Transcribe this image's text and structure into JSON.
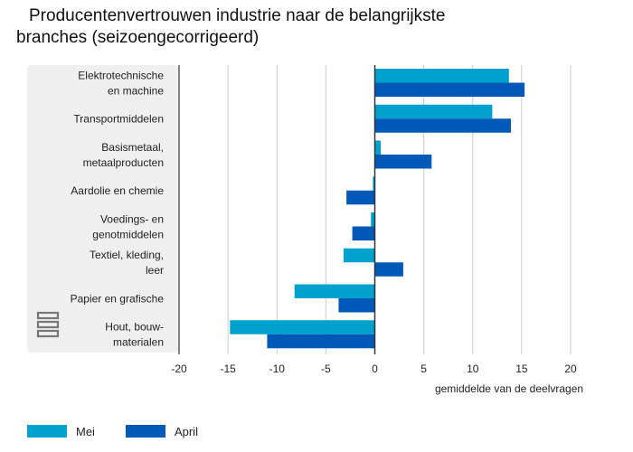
{
  "title_line1": "Producentenvertrouwen industrie naar de belangrijkste",
  "title_line2": "branches (seizoengecorrigeerd)",
  "logo_icon": "cbs-logo-icon",
  "colors": {
    "mei": "#00a1cd",
    "april": "#0058b8",
    "panel": "#efefef",
    "grid": "#cccccc",
    "zero": "#333333"
  },
  "chart_data": {
    "type": "bar",
    "orientation": "horizontal",
    "categories": [
      [
        "Elektrotechnische",
        "en machine"
      ],
      [
        "Transportmiddelen"
      ],
      [
        "Basismetaal,",
        "metaalproducten"
      ],
      [
        "Aardolie en chemie"
      ],
      [
        "Voedings- en",
        "genotmiddelen"
      ],
      [
        "Textiel, kleding,",
        "leer"
      ],
      [
        "Papier en grafische"
      ],
      [
        "Hout, bouw-",
        "materialen"
      ]
    ],
    "series": [
      {
        "name": "Mei",
        "values": [
          13.7,
          12.0,
          0.6,
          -0.2,
          -0.4,
          -3.2,
          -8.2,
          -14.8
        ]
      },
      {
        "name": "April",
        "values": [
          15.3,
          13.9,
          5.8,
          -2.9,
          -2.3,
          2.9,
          -3.7,
          -11.0
        ]
      }
    ],
    "xlabel": "gemiddelde van de deelvragen",
    "ylabel": "",
    "xlim": [
      -20,
      20
    ],
    "xticks": [
      -20,
      -15,
      -10,
      -5,
      0,
      5,
      10,
      15,
      20
    ],
    "grid": true,
    "legend_position": "bottom-left"
  }
}
